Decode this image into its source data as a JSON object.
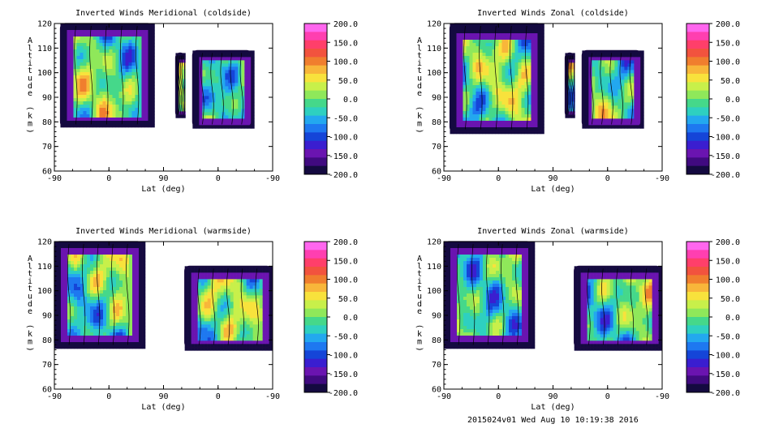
{
  "footer": "2015024v01 Wed Aug 10 10:19:38 2016",
  "colorbar": {
    "labels": [
      "200.0",
      "150.0",
      "100.0",
      "50.0",
      "0.0",
      "-50.0",
      "-100.0",
      "-150.0",
      "-200.0"
    ],
    "colors": [
      "#ff66ee",
      "#ff3fb0",
      "#ff3f6a",
      "#f2533e",
      "#f07e2e",
      "#f8b63a",
      "#f8e23c",
      "#c8f04a",
      "#8fe85a",
      "#45d88a",
      "#2ed0c0",
      "#23a8ef",
      "#1e78f0",
      "#1545d8",
      "#3a1ed0",
      "#6a14b0",
      "#400a80",
      "#140a40"
    ]
  },
  "chart_data": [
    {
      "type": "heatmap",
      "title": "Inverted Winds Meridional (coldside)",
      "xlabel": "Lat (deg)",
      "ylabel": "Altitude (km)",
      "x_ticks": [
        "-90",
        "0",
        "90",
        "0",
        "-90"
      ],
      "y_ticks": [
        120,
        110,
        100,
        90,
        80,
        70,
        60
      ],
      "ylim": [
        60,
        120
      ],
      "colorbar_range": [
        -200,
        200
      ],
      "filled_regions_lat_km": [
        {
          "x": [
            -80,
            72
          ],
          "y": [
            78,
            120
          ]
        },
        {
          "x": [
            110,
            125
          ],
          "y": [
            82,
            108
          ]
        },
        {
          "x": [
            138,
            235
          ],
          "y": [
            78,
            109
          ]
        }
      ]
    },
    {
      "type": "heatmap",
      "title": "Inverted Winds Zonal (coldside)",
      "xlabel": "Lat (deg)",
      "ylabel": "Altitude (km)",
      "x_ticks": [
        "-90",
        "0",
        "90",
        "0",
        "-90"
      ],
      "y_ticks": [
        120,
        110,
        100,
        90,
        80,
        70,
        60
      ],
      "ylim": [
        60,
        120
      ],
      "colorbar_range": [
        -200,
        200
      ],
      "filled_regions_lat_km": [
        {
          "x": [
            -80,
            72
          ],
          "y": [
            76,
            120
          ]
        },
        {
          "x": [
            110,
            125
          ],
          "y": [
            82,
            108
          ]
        },
        {
          "x": [
            138,
            235
          ],
          "y": [
            78,
            109
          ]
        }
      ]
    },
    {
      "type": "heatmap",
      "title": "Inverted Winds Meridional (warmside)",
      "xlabel": "Lat (deg)",
      "ylabel": "Altitude (km)",
      "x_ticks": [
        "-90",
        "0",
        "90",
        "0",
        "-90"
      ],
      "y_ticks": [
        120,
        110,
        100,
        90,
        80,
        70,
        60
      ],
      "ylim": [
        60,
        120
      ],
      "colorbar_range": [
        -200,
        200
      ],
      "filled_regions_lat_km": [
        {
          "x": [
            -90,
            55
          ],
          "y": [
            77,
            120
          ]
        },
        {
          "x": [
            125,
            268
          ],
          "y": [
            77,
            110
          ]
        }
      ]
    },
    {
      "type": "heatmap",
      "title": "Inverted Winds Zonal (warmside)",
      "xlabel": "Lat (deg)",
      "ylabel": "Altitude (km)",
      "x_ticks": [
        "-90",
        "0",
        "90",
        "0",
        "-90"
      ],
      "y_ticks": [
        120,
        110,
        100,
        90,
        80,
        70,
        60
      ],
      "ylim": [
        60,
        120
      ],
      "colorbar_range": [
        -200,
        200
      ],
      "filled_regions_lat_km": [
        {
          "x": [
            -90,
            55
          ],
          "y": [
            77,
            120
          ]
        },
        {
          "x": [
            125,
            268
          ],
          "y": [
            77,
            110
          ]
        }
      ]
    }
  ]
}
